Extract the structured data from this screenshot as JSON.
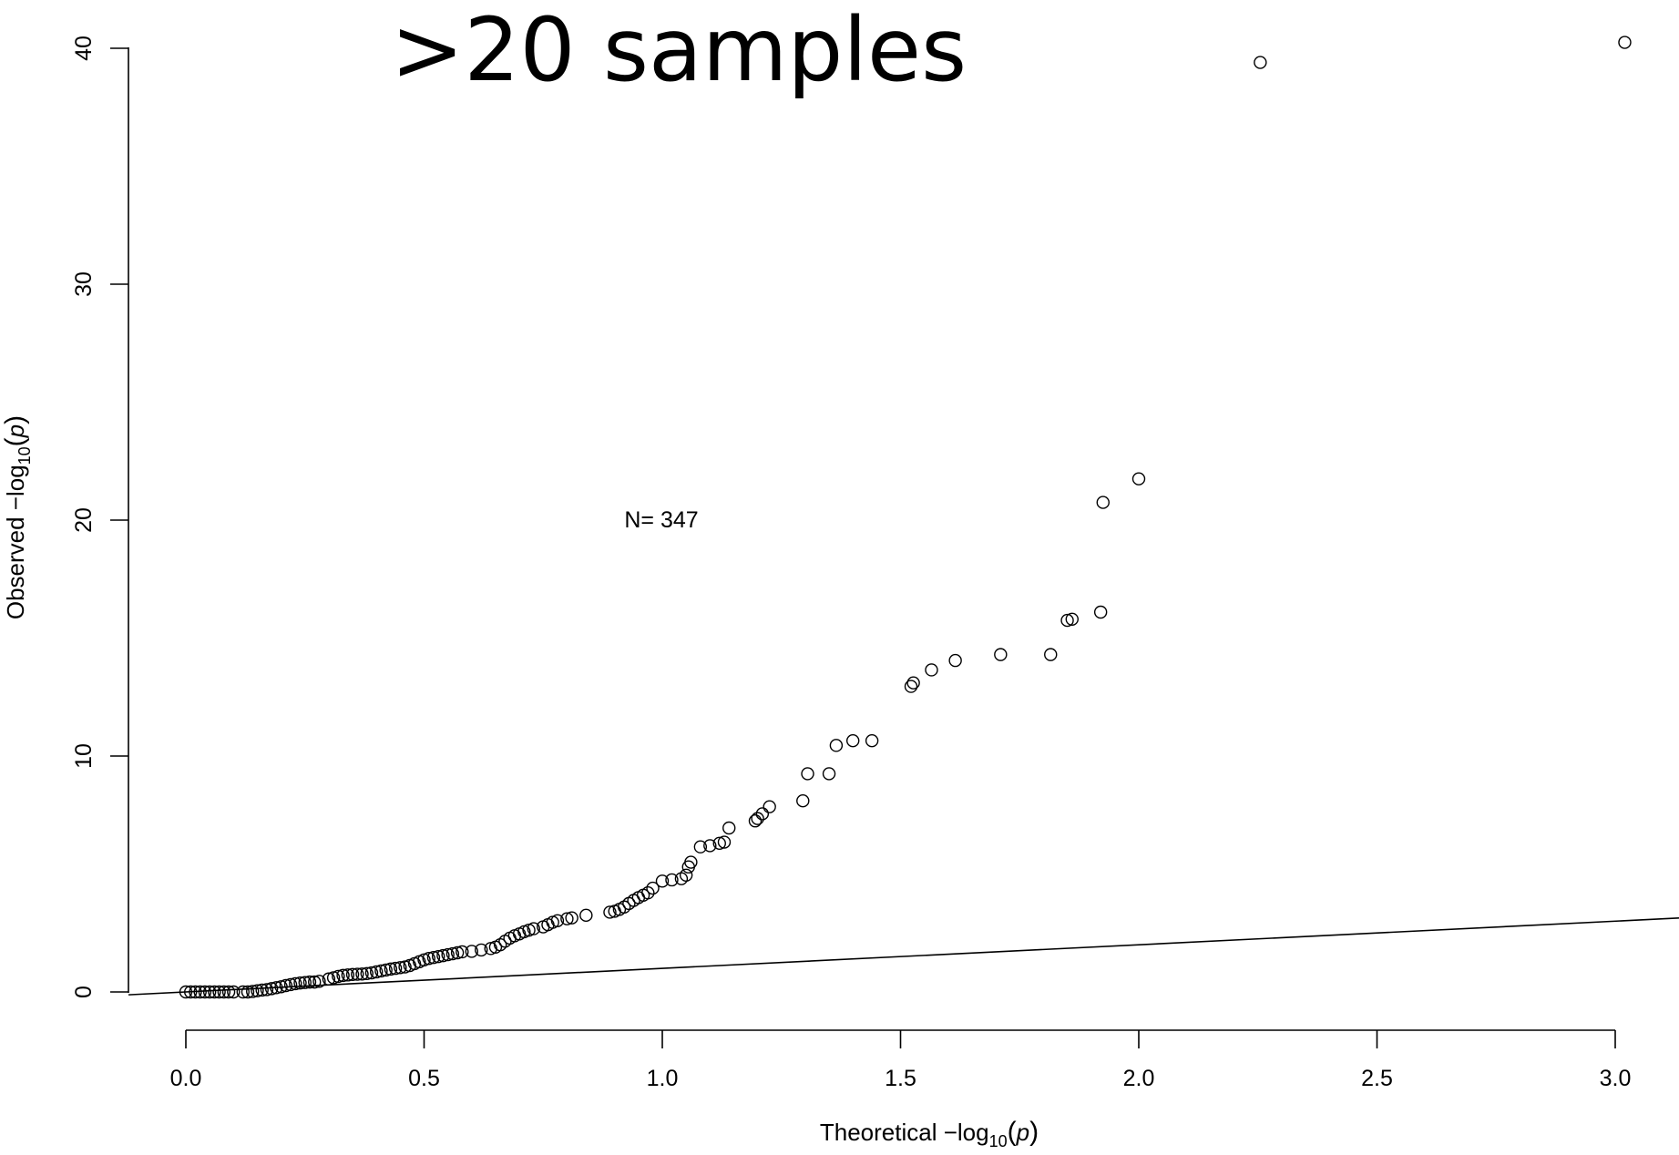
{
  "chart_data": {
    "type": "scatter",
    "title": ">20 samples",
    "annotation": "N= 347",
    "xlabel": {
      "prefix": "Theoretical  −log",
      "sub": "10",
      "open": "(",
      "var": "p",
      "close": ")"
    },
    "ylabel": {
      "prefix": "Observed  −log",
      "sub": "10",
      "open": "(",
      "var": "p",
      "close": ")"
    },
    "xlim": [
      -0.12,
      3.13
    ],
    "ylim": [
      -1.6,
      40.6
    ],
    "x_ticks": [
      0.0,
      0.5,
      1.0,
      1.5,
      2.0,
      2.5,
      3.0
    ],
    "x_tick_labels": [
      "0.0",
      "0.5",
      "1.0",
      "1.5",
      "2.0",
      "2.5",
      "3.0"
    ],
    "y_ticks": [
      0,
      10,
      20,
      30,
      40
    ],
    "y_tick_labels": [
      "0",
      "10",
      "20",
      "30",
      "40"
    ],
    "reference_line": {
      "type": "identity",
      "slope": 1,
      "intercept": 0
    },
    "marker": "open-circle",
    "points": [
      [
        0.0,
        0.0
      ],
      [
        0.01,
        0.0
      ],
      [
        0.02,
        0.0
      ],
      [
        0.03,
        0.0
      ],
      [
        0.04,
        0.0
      ],
      [
        0.05,
        0.0
      ],
      [
        0.06,
        0.0
      ],
      [
        0.07,
        0.0
      ],
      [
        0.08,
        0.0
      ],
      [
        0.09,
        0.0
      ],
      [
        0.1,
        0.0
      ],
      [
        0.12,
        0.0
      ],
      [
        0.13,
        0.0
      ],
      [
        0.14,
        0.02
      ],
      [
        0.15,
        0.05
      ],
      [
        0.16,
        0.08
      ],
      [
        0.17,
        0.1
      ],
      [
        0.18,
        0.14
      ],
      [
        0.19,
        0.18
      ],
      [
        0.2,
        0.22
      ],
      [
        0.21,
        0.27
      ],
      [
        0.22,
        0.31
      ],
      [
        0.23,
        0.35
      ],
      [
        0.24,
        0.38
      ],
      [
        0.25,
        0.4
      ],
      [
        0.26,
        0.42
      ],
      [
        0.27,
        0.42
      ],
      [
        0.28,
        0.45
      ],
      [
        0.3,
        0.55
      ],
      [
        0.31,
        0.6
      ],
      [
        0.32,
        0.66
      ],
      [
        0.33,
        0.7
      ],
      [
        0.34,
        0.72
      ],
      [
        0.35,
        0.74
      ],
      [
        0.36,
        0.75
      ],
      [
        0.37,
        0.76
      ],
      [
        0.38,
        0.78
      ],
      [
        0.39,
        0.81
      ],
      [
        0.4,
        0.85
      ],
      [
        0.41,
        0.89
      ],
      [
        0.42,
        0.93
      ],
      [
        0.43,
        0.97
      ],
      [
        0.44,
        1.0
      ],
      [
        0.45,
        1.03
      ],
      [
        0.46,
        1.06
      ],
      [
        0.47,
        1.12
      ],
      [
        0.48,
        1.2
      ],
      [
        0.49,
        1.28
      ],
      [
        0.5,
        1.36
      ],
      [
        0.51,
        1.42
      ],
      [
        0.52,
        1.46
      ],
      [
        0.53,
        1.5
      ],
      [
        0.54,
        1.54
      ],
      [
        0.55,
        1.58
      ],
      [
        0.56,
        1.62
      ],
      [
        0.57,
        1.66
      ],
      [
        0.58,
        1.7
      ],
      [
        0.6,
        1.72
      ],
      [
        0.62,
        1.78
      ],
      [
        0.64,
        1.84
      ],
      [
        0.65,
        1.9
      ],
      [
        0.66,
        2.0
      ],
      [
        0.67,
        2.15
      ],
      [
        0.68,
        2.28
      ],
      [
        0.69,
        2.38
      ],
      [
        0.7,
        2.46
      ],
      [
        0.71,
        2.55
      ],
      [
        0.72,
        2.62
      ],
      [
        0.73,
        2.68
      ],
      [
        0.75,
        2.76
      ],
      [
        0.76,
        2.85
      ],
      [
        0.77,
        2.95
      ],
      [
        0.78,
        3.02
      ],
      [
        0.8,
        3.1
      ],
      [
        0.81,
        3.14
      ],
      [
        0.84,
        3.25
      ],
      [
        0.89,
        3.38
      ],
      [
        0.9,
        3.42
      ],
      [
        0.91,
        3.5
      ],
      [
        0.92,
        3.6
      ],
      [
        0.93,
        3.75
      ],
      [
        0.94,
        3.88
      ],
      [
        0.95,
        4.0
      ],
      [
        0.96,
        4.1
      ],
      [
        0.97,
        4.2
      ],
      [
        0.98,
        4.4
      ],
      [
        1.0,
        4.7
      ],
      [
        1.02,
        4.75
      ],
      [
        1.04,
        4.8
      ],
      [
        1.05,
        4.95
      ],
      [
        1.055,
        5.3
      ],
      [
        1.06,
        5.5
      ],
      [
        1.08,
        6.15
      ],
      [
        1.1,
        6.2
      ],
      [
        1.12,
        6.3
      ],
      [
        1.13,
        6.35
      ],
      [
        1.14,
        6.95
      ],
      [
        1.195,
        7.25
      ],
      [
        1.2,
        7.35
      ],
      [
        1.21,
        7.55
      ],
      [
        1.225,
        7.85
      ],
      [
        1.295,
        8.1
      ],
      [
        1.305,
        9.25
      ],
      [
        1.35,
        9.25
      ],
      [
        1.365,
        10.45
      ],
      [
        1.4,
        10.65
      ],
      [
        1.44,
        10.65
      ],
      [
        1.522,
        12.95
      ],
      [
        1.527,
        13.1
      ],
      [
        1.565,
        13.65
      ],
      [
        1.615,
        14.05
      ],
      [
        1.71,
        14.3
      ],
      [
        1.815,
        14.3
      ],
      [
        1.85,
        15.75
      ],
      [
        1.86,
        15.8
      ],
      [
        1.92,
        16.1
      ],
      [
        1.925,
        20.75
      ],
      [
        2.0,
        21.75
      ],
      [
        2.255,
        39.4
      ],
      [
        3.02,
        40.25
      ]
    ]
  }
}
